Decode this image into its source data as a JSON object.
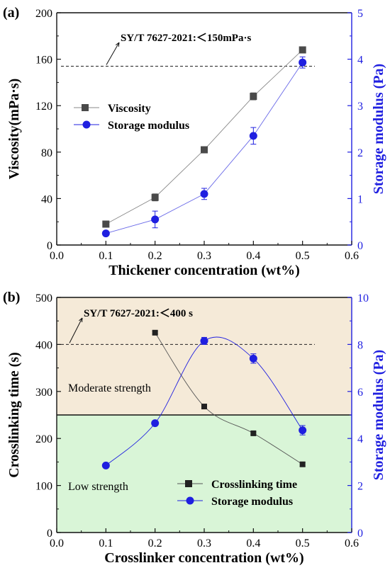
{
  "chart_data": [
    {
      "panel_label": "(a)",
      "type": "line",
      "xlabel": "Thickener concentration (wt%)",
      "ylabel": "Viscosity(mPa·s)",
      "y2label": "Storage modulus (Pa)",
      "xlim": [
        0.0,
        0.6
      ],
      "ylim": [
        0,
        200
      ],
      "y2lim": [
        0,
        5
      ],
      "xticks": [
        "0.0",
        "0.1",
        "0.2",
        "0.3",
        "0.4",
        "0.5",
        "0.6"
      ],
      "yticks": [
        "0",
        "40",
        "80",
        "120",
        "160",
        "200"
      ],
      "y2ticks": [
        "0",
        "1",
        "2",
        "3",
        "4",
        "5"
      ],
      "legend_position": "center-left",
      "annotation": {
        "text": "SY/T 7627-2021:＜150mPa·s",
        "y": 154
      },
      "series": [
        {
          "name": "Viscosity",
          "axis": "left",
          "marker": "square",
          "color": "#4a4a4a",
          "x": [
            0.1,
            0.2,
            0.3,
            0.4,
            0.5
          ],
          "y": [
            18,
            41,
            82,
            128,
            168
          ],
          "err": [
            2,
            3,
            2,
            3,
            2
          ]
        },
        {
          "name": "Storage modulus",
          "axis": "right",
          "marker": "circle",
          "color": "#1f1fe0",
          "x": [
            0.1,
            0.2,
            0.3,
            0.4,
            0.5
          ],
          "y": [
            0.25,
            0.55,
            1.1,
            2.35,
            3.93
          ],
          "err": [
            0.05,
            0.18,
            0.12,
            0.18,
            0.12
          ]
        }
      ]
    },
    {
      "panel_label": "(b)",
      "type": "line",
      "xlabel": "Crosslinker concentration (wt%)",
      "ylabel": "Crosslinking time (s)",
      "y2label": "Storage modulus (Pa)",
      "xlim": [
        0.0,
        0.6
      ],
      "ylim": [
        0,
        500
      ],
      "y2lim": [
        0,
        10
      ],
      "xticks": [
        "0.0",
        "0.1",
        "0.2",
        "0.3",
        "0.4",
        "0.5",
        "0.6"
      ],
      "yticks": [
        "0",
        "100",
        "200",
        "300",
        "400",
        "500"
      ],
      "y2ticks": [
        "0",
        "2",
        "4",
        "6",
        "8",
        "10"
      ],
      "legend_position": "bottom-right",
      "annotation": {
        "text": "SY/T 7627-2021:＜400 s",
        "y": 400
      },
      "regions": [
        {
          "text": "Moderate strength",
          "from": 250,
          "to": 500,
          "color": "#f5ead8"
        },
        {
          "text": "Low strength",
          "from": 0,
          "to": 250,
          "color": "#d9f5d7"
        }
      ],
      "boundary_y": 250,
      "series": [
        {
          "name": "Crosslinking time",
          "axis": "left",
          "marker": "square",
          "color": "#222222",
          "x": [
            0.2,
            0.3,
            0.4,
            0.5
          ],
          "y": [
            425,
            268,
            211,
            145
          ],
          "err": [
            3,
            3,
            3,
            4
          ]
        },
        {
          "name": "Storage modulus",
          "axis": "right",
          "marker": "circle",
          "color": "#1f1fe0",
          "x": [
            0.1,
            0.2,
            0.3,
            0.4,
            0.5
          ],
          "y": [
            2.85,
            4.65,
            8.15,
            7.4,
            4.35
          ],
          "err": [
            0.05,
            0.05,
            0.15,
            0.2,
            0.2
          ]
        }
      ]
    }
  ]
}
